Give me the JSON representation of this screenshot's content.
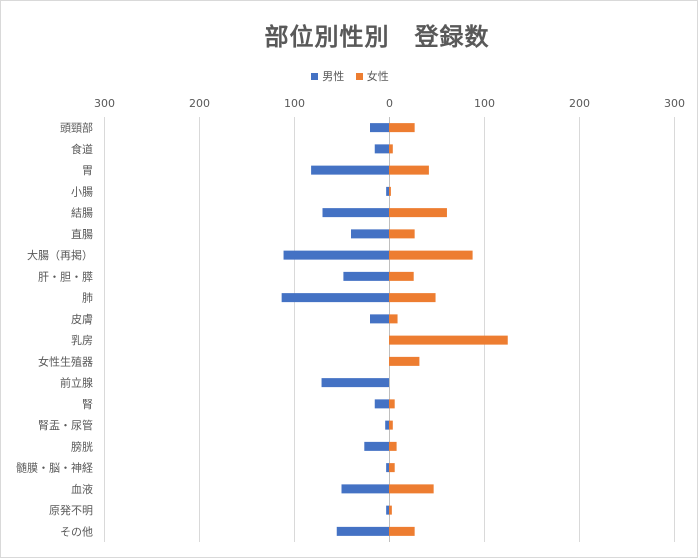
{
  "chart_data": {
    "type": "bar",
    "orientation": "horizontal",
    "layout": "diverging",
    "title": "部位別性別　登録数",
    "categories": [
      "頭頸部",
      "食道",
      "胃",
      "小腸",
      "結腸",
      "直腸",
      "大腸（再掲）",
      "肝・胆・膵",
      "肺",
      "皮膚",
      "乳房",
      "女性生殖器",
      "前立腺",
      "腎",
      "腎盂・尿管",
      "膀胱",
      "髄膜・脳・神経",
      "血液",
      "原発不明",
      "その他"
    ],
    "series": [
      {
        "name": "男性",
        "color": "#4472c4",
        "side": "left",
        "values": [
          20,
          15,
          82,
          3,
          70,
          40,
          111,
          48,
          113,
          20,
          0,
          0,
          71,
          15,
          4,
          26,
          3,
          50,
          3,
          55
        ]
      },
      {
        "name": "女性",
        "color": "#ed7d31",
        "side": "right",
        "values": [
          27,
          4,
          42,
          2,
          61,
          27,
          88,
          26,
          49,
          9,
          125,
          32,
          0,
          6,
          4,
          8,
          6,
          47,
          3,
          27
        ]
      }
    ],
    "xlim": [
      -300,
      300
    ],
    "tick_values": [
      -300,
      -200,
      -100,
      0,
      100,
      200,
      300
    ],
    "tick_labels": [
      "300",
      "200",
      "100",
      "0",
      "100",
      "200",
      "300"
    ],
    "xlabel": "",
    "ylabel": "",
    "grid": true,
    "legend_position": "top"
  }
}
